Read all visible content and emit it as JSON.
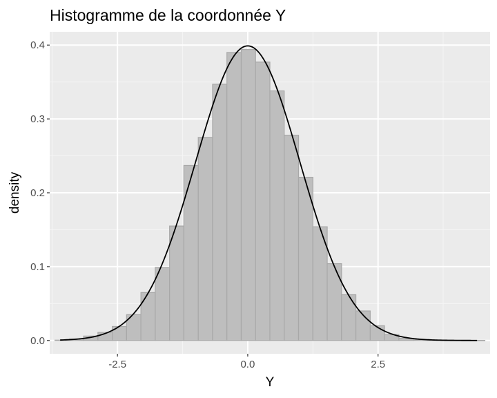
{
  "chart_data": {
    "type": "histogram",
    "title": "Histogramme de la coordonnée Y",
    "xlabel": "Y",
    "ylabel": "density",
    "xlim": [
      -3.8,
      4.65
    ],
    "ylim": [
      -0.018,
      0.418
    ],
    "x_ticks": [
      -2.5,
      0.0,
      2.5
    ],
    "x_tick_labels": [
      "-2.5",
      "0.0",
      "2.5"
    ],
    "x_minor_ticks": [
      -3.75,
      -1.25,
      1.25,
      3.75
    ],
    "y_ticks": [
      0.0,
      0.1,
      0.2,
      0.3,
      0.4
    ],
    "y_tick_labels": [
      "0.0",
      "0.1",
      "0.2",
      "0.3",
      "0.4"
    ],
    "y_minor_ticks": [
      0.05,
      0.15,
      0.25,
      0.35
    ],
    "bin_width": 0.275,
    "bins": [
      {
        "x0": -3.7,
        "x1": -3.425,
        "density": 0.0005
      },
      {
        "x0": -3.425,
        "x1": -3.15,
        "density": 0.002
      },
      {
        "x0": -3.15,
        "x1": -2.875,
        "density": 0.006
      },
      {
        "x0": -2.875,
        "x1": -2.6,
        "density": 0.011
      },
      {
        "x0": -2.6,
        "x1": -2.325,
        "density": 0.019
      },
      {
        "x0": -2.325,
        "x1": -2.05,
        "density": 0.035
      },
      {
        "x0": -2.05,
        "x1": -1.775,
        "density": 0.065
      },
      {
        "x0": -1.775,
        "x1": -1.5,
        "density": 0.099
      },
      {
        "x0": -1.5,
        "x1": -1.225,
        "density": 0.155
      },
      {
        "x0": -1.225,
        "x1": -0.95,
        "density": 0.237
      },
      {
        "x0": -0.95,
        "x1": -0.675,
        "density": 0.275
      },
      {
        "x0": -0.675,
        "x1": -0.4,
        "density": 0.347
      },
      {
        "x0": -0.4,
        "x1": -0.125,
        "density": 0.39
      },
      {
        "x0": -0.125,
        "x1": 0.15,
        "density": 0.394
      },
      {
        "x0": 0.15,
        "x1": 0.425,
        "density": 0.377
      },
      {
        "x0": 0.425,
        "x1": 0.7,
        "density": 0.338
      },
      {
        "x0": 0.7,
        "x1": 0.975,
        "density": 0.278
      },
      {
        "x0": 0.975,
        "x1": 1.25,
        "density": 0.221
      },
      {
        "x0": 1.25,
        "x1": 1.525,
        "density": 0.154
      },
      {
        "x0": 1.525,
        "x1": 1.8,
        "density": 0.104
      },
      {
        "x0": 1.8,
        "x1": 2.075,
        "density": 0.062
      },
      {
        "x0": 2.075,
        "x1": 2.35,
        "density": 0.04
      },
      {
        "x0": 2.35,
        "x1": 2.625,
        "density": 0.02
      },
      {
        "x0": 2.625,
        "x1": 2.9,
        "density": 0.008
      },
      {
        "x0": 2.9,
        "x1": 3.175,
        "density": 0.003
      },
      {
        "x0": 3.175,
        "x1": 3.45,
        "density": 0.001
      },
      {
        "x0": 3.45,
        "x1": 3.725,
        "density": 0.0005
      },
      {
        "x0": 3.725,
        "x1": 4.0,
        "density": 0.0003
      },
      {
        "x0": 4.0,
        "x1": 4.275,
        "density": 0.0002
      },
      {
        "x0": 4.275,
        "x1": 4.55,
        "density": 0.0002
      }
    ],
    "density_curve": {
      "distribution": "normal",
      "mean": 0.0,
      "sd": 1.0,
      "x_range": [
        -3.6,
        4.4
      ]
    },
    "colors": {
      "panel_background": "#ebebeb",
      "grid_major": "#ffffff",
      "grid_minor": "#f5f5f5",
      "bar_fill": "#bebebe",
      "bar_stroke": "#a8a8a8",
      "curve": "#000000",
      "tick": "#333333"
    }
  }
}
